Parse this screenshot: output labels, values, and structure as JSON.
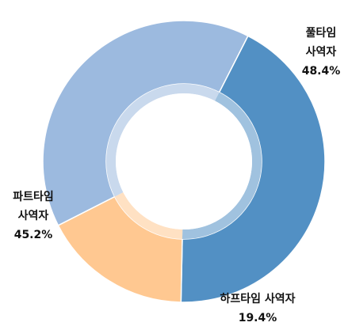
{
  "chart_data": {
    "type": "pie",
    "donut": true,
    "slices": [
      {
        "label_lines": [
          "풀타임",
          "사역자"
        ],
        "value": 48.4,
        "value_text": "48.4%",
        "color": "#5290C4"
      },
      {
        "label_lines": [
          "하프타임  사역자"
        ],
        "value": 19.4,
        "value_text": "19.4%",
        "color": "#FFC891"
      },
      {
        "label_lines": [
          "파트타임",
          "사역자"
        ],
        "value": 45.2,
        "value_text": "45.2%",
        "color": "#9CBADF"
      }
    ],
    "legend": "none",
    "start_angle_deg": 27,
    "direction": "clockwise"
  }
}
